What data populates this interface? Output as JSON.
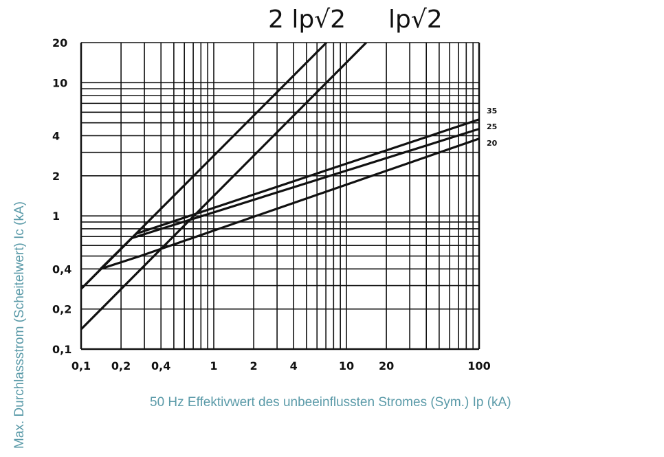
{
  "titles": [
    "2 lp√2",
    "lp√2"
  ],
  "ylabel": "Max. Durchlassstrom (Scheitelwert) Ic (kA)",
  "xlabel": "50 Hz Effektivwert des unbeeinflussten Stromes (Sym.) Ip (kA)",
  "chart_data": {
    "type": "line",
    "x_scale": "log",
    "y_scale": "log",
    "xlim": [
      0.1,
      100
    ],
    "ylim": [
      0.1,
      20
    ],
    "x_ticks": [
      {
        "value": 0.1,
        "label": "0,1"
      },
      {
        "value": 0.2,
        "label": "0,2"
      },
      {
        "value": 0.4,
        "label": "0,4"
      },
      {
        "value": 1,
        "label": "1"
      },
      {
        "value": 2,
        "label": "2"
      },
      {
        "value": 4,
        "label": "4"
      },
      {
        "value": 10,
        "label": "10"
      },
      {
        "value": 20,
        "label": "20"
      },
      {
        "value": 100,
        "label": "100"
      }
    ],
    "y_ticks": [
      {
        "value": 0.1,
        "label": "0,1"
      },
      {
        "value": 0.2,
        "label": "0,2"
      },
      {
        "value": 0.4,
        "label": "0,4"
      },
      {
        "value": 1,
        "label": "1"
      },
      {
        "value": 2,
        "label": "2"
      },
      {
        "value": 4,
        "label": "4"
      },
      {
        "value": 10,
        "label": "10"
      },
      {
        "value": 20,
        "label": "20"
      }
    ],
    "grid": true,
    "series": [
      {
        "name": "2 lp√2",
        "points": [
          [
            0.1,
            0.283
          ],
          [
            7.07,
            20
          ]
        ]
      },
      {
        "name": "lp√2",
        "points": [
          [
            0.1,
            0.141
          ],
          [
            14.1,
            20
          ]
        ]
      },
      {
        "name": "35",
        "points": [
          [
            0.1,
            0.283
          ],
          [
            0.26,
            0.735
          ],
          [
            100,
            5.3
          ]
        ]
      },
      {
        "name": "25",
        "points": [
          [
            0.14,
            0.4
          ],
          [
            0.24,
            0.68
          ],
          [
            100,
            4.5
          ]
        ]
      },
      {
        "name": "20",
        "points": [
          [
            0.14,
            0.4
          ],
          [
            0.28,
            0.5
          ],
          [
            100,
            3.8
          ]
        ]
      }
    ],
    "line_labels": [
      "35",
      "25",
      "20"
    ],
    "line_color": "#111111",
    "grid_color": "#111111"
  }
}
